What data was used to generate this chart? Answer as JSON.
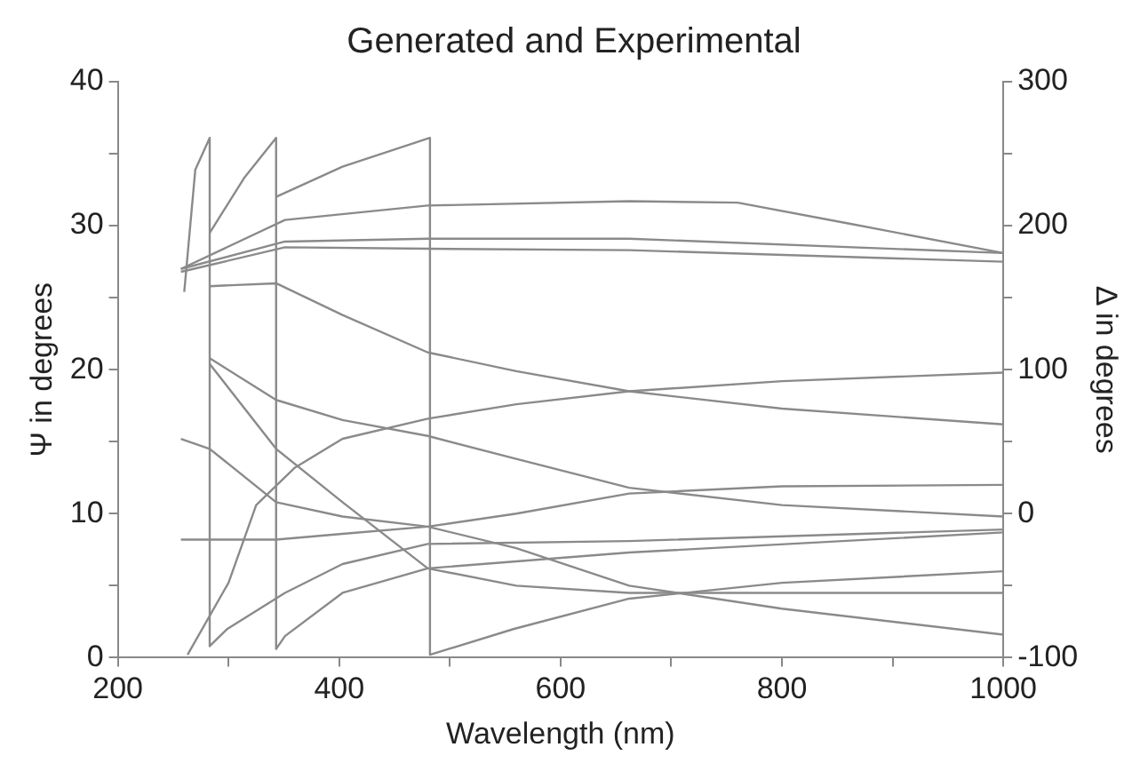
{
  "chart_data": {
    "type": "line",
    "title": "Generated and Experimental",
    "xlabel": "Wavelength (nm)",
    "ylabel": "Ψ in degrees",
    "y2label": "Δ in degrees",
    "xlim": [
      200,
      1000
    ],
    "xticks": [
      200,
      {
        "value": 300,
        "label": null
      },
      400,
      {
        "value": 500,
        "label": null
      },
      600,
      {
        "value": 700,
        "label": null
      },
      800,
      {
        "value": 900,
        "label": null
      },
      1000
    ],
    "ylim": [
      0,
      40
    ],
    "yticks": [
      0,
      {
        "value": 5,
        "label": null
      },
      10,
      {
        "value": 15,
        "label": null
      },
      20,
      {
        "value": 25,
        "label": null
      },
      30,
      {
        "value": 35,
        "label": null
      },
      40
    ],
    "y2lim": [
      -100,
      300
    ],
    "y2ticks": [
      -100,
      {
        "value": -50,
        "label": null
      },
      0,
      {
        "value": 50,
        "label": null
      },
      100,
      {
        "value": 150,
        "label": null
      },
      200,
      {
        "value": 250,
        "label": null
      },
      300
    ],
    "grid": false,
    "legend": false,
    "marker": "none",
    "line_style": "solid",
    "series": [
      {
        "color": "#8a8a8a",
        "x": [
          257,
          351,
          480,
          662,
          760,
          864,
          1000
        ],
        "values": [
          27.0,
          30.4,
          31.4,
          31.7,
          31.6,
          30.1,
          28.1
        ]
      },
      {
        "color": "#8a8a8a",
        "x": [
          257,
          351,
          480,
          662,
          1000
        ],
        "values": [
          27.0,
          28.9,
          29.1,
          29.1,
          28.1
        ]
      },
      {
        "color": "#8a8a8a",
        "x": [
          257,
          351,
          480,
          662,
          1000
        ],
        "values": [
          26.8,
          28.5,
          28.4,
          28.3,
          27.5
        ]
      },
      {
        "color": "#8a8a8a",
        "x": [
          283,
          343,
          403,
          480,
          560,
          662,
          800,
          1000
        ],
        "values": [
          25.8,
          26.0,
          23.8,
          21.2,
          19.9,
          18.5,
          17.3,
          16.2
        ]
      },
      {
        "color": "#8a8a8a",
        "x": [
          283,
          343,
          403,
          480,
          560,
          662,
          800,
          1000
        ],
        "values": [
          20.8,
          17.9,
          16.5,
          15.4,
          13.8,
          11.8,
          10.6,
          9.8
        ]
      },
      {
        "color": "#8a8a8a",
        "x": [
          257,
          283,
          343,
          403,
          480,
          560,
          662,
          800,
          1000
        ],
        "values": [
          15.2,
          14.5,
          10.8,
          9.8,
          9.1,
          7.6,
          5.0,
          3.4,
          1.6
        ]
      },
      {
        "color": "#8a8a8a",
        "x": [
          257,
          343,
          403,
          480,
          560,
          662,
          800,
          1000
        ],
        "values": [
          8.2,
          8.2,
          8.6,
          9.1,
          10.0,
          11.4,
          11.9,
          12.0
        ]
      },
      {
        "color": "#8a8a8a",
        "x": [
          263,
          300,
          325,
          360,
          403,
          480,
          560,
          662,
          800,
          1000
        ],
        "values": [
          0.2,
          5.2,
          10.6,
          13.2,
          15.2,
          16.6,
          17.6,
          18.5,
          19.2,
          19.8
        ]
      },
      {
        "color": "#8a8a8a",
        "x": [
          283,
          343,
          403,
          480,
          560,
          662,
          800,
          1000
        ],
        "values": [
          20.4,
          14.5,
          10.8,
          6.2,
          5.0,
          4.5,
          4.5,
          4.5
        ]
      },
      {
        "color": "#8a8a8a",
        "axis": "y2",
        "x": [
          260,
          270,
          283,
          283,
          299,
          351,
          403,
          480,
          662,
          1000
        ],
        "values": [
          154,
          239,
          261,
          -92,
          -80,
          -55,
          -35,
          -21,
          -19,
          -11
        ]
      },
      {
        "color": "#8a8a8a",
        "axis": "y2",
        "x": [
          283,
          314,
          343,
          343,
          351,
          403,
          480,
          662,
          1000
        ],
        "values": [
          195,
          233,
          261,
          -94,
          -85,
          -55,
          -38,
          -27,
          -13
        ]
      },
      {
        "color": "#8a8a8a",
        "axis": "y2",
        "x": [
          343,
          403,
          482,
          482,
          558,
          662,
          800,
          1000
        ],
        "values": [
          220,
          241,
          261,
          -98,
          -80,
          -59,
          -48,
          -40
        ]
      }
    ]
  }
}
